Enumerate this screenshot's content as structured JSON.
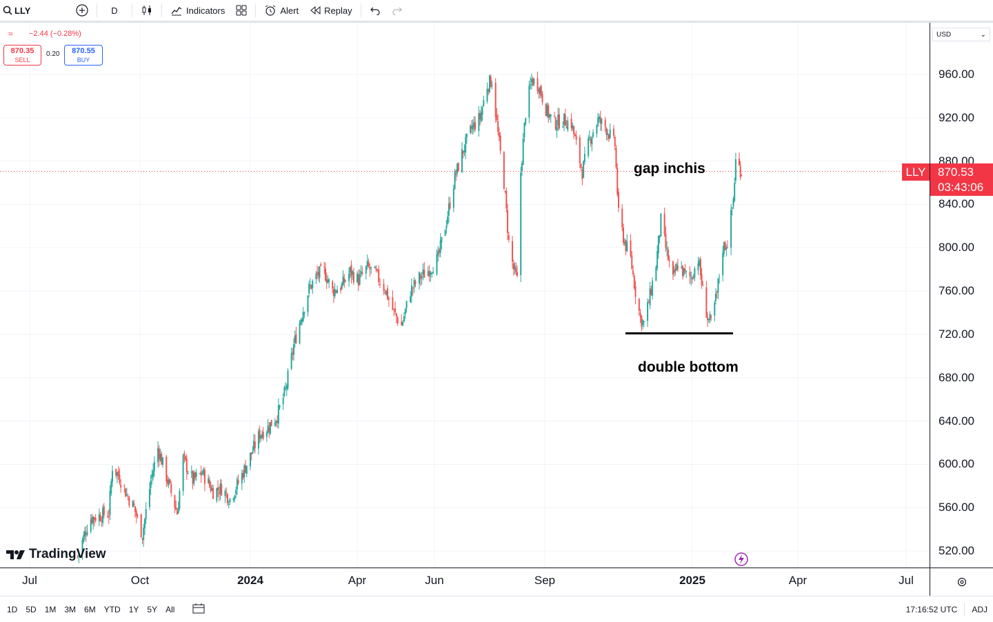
{
  "toolbar": {
    "symbol": "LLY",
    "interval": "D",
    "indicators": "Indicators",
    "alert": "Alert",
    "replay": "Replay"
  },
  "quote": {
    "change": "−2.44 (−0.28%)",
    "sell_price": "870.35",
    "sell_label": "SELL",
    "spread": "0.20",
    "buy_price": "870.55",
    "buy_label": "BUY"
  },
  "currency": "USD",
  "price_axis": [
    "960.00",
    "920.00",
    "880.00",
    "840.00",
    "800.00",
    "760.00",
    "720.00",
    "680.00",
    "640.00",
    "600.00",
    "560.00",
    "520.00"
  ],
  "time_axis": [
    "Jul",
    "Oct",
    "2024",
    "Apr",
    "Jun",
    "Sep",
    "2025",
    "Apr",
    "Jul"
  ],
  "last_price": {
    "ticker": "LLY",
    "price": "870.53",
    "countdown": "03:43:06"
  },
  "annotations": {
    "gap": "gap inchis",
    "double_bottom": "double bottom"
  },
  "logo": "TradingView",
  "bottombar": {
    "ranges": [
      "1D",
      "5D",
      "1M",
      "3M",
      "6M",
      "YTD",
      "1Y",
      "5Y",
      "All"
    ],
    "clock": "17:16:52 UTC",
    "adj": "ADJ"
  },
  "colors": {
    "up": "#26a69a",
    "down": "#ef5350",
    "accent": "#f23645",
    "buy": "#2962ff"
  },
  "chart_data": {
    "type": "candlestick",
    "symbol": "LLY",
    "yrange": [
      505,
      985
    ],
    "scale": "linear",
    "grid": true,
    "anchors": [
      {
        "date": "2023-08-10",
        "price": 515
      },
      {
        "date": "2023-08-20",
        "price": 550
      },
      {
        "date": "2023-09-05",
        "price": 555
      },
      {
        "date": "2023-09-08",
        "price": 598
      },
      {
        "date": "2023-09-14",
        "price": 588
      },
      {
        "date": "2023-09-20",
        "price": 572
      },
      {
        "date": "2023-09-26",
        "price": 560
      },
      {
        "date": "2023-10-03",
        "price": 535
      },
      {
        "date": "2023-10-10",
        "price": 585
      },
      {
        "date": "2023-10-16",
        "price": 615
      },
      {
        "date": "2023-10-24",
        "price": 585
      },
      {
        "date": "2023-11-01",
        "price": 555
      },
      {
        "date": "2023-11-06",
        "price": 605
      },
      {
        "date": "2023-11-14",
        "price": 585
      },
      {
        "date": "2023-11-22",
        "price": 592
      },
      {
        "date": "2023-12-01",
        "price": 575
      },
      {
        "date": "2023-12-08",
        "price": 578
      },
      {
        "date": "2023-12-15",
        "price": 568
      },
      {
        "date": "2023-12-22",
        "price": 583
      },
      {
        "date": "2024-01-02",
        "price": 610
      },
      {
        "date": "2024-01-09",
        "price": 628
      },
      {
        "date": "2024-01-16",
        "price": 634
      },
      {
        "date": "2024-01-24",
        "price": 645
      },
      {
        "date": "2024-01-31",
        "price": 668
      },
      {
        "date": "2024-02-07",
        "price": 710
      },
      {
        "date": "2024-02-13",
        "price": 735
      },
      {
        "date": "2024-02-20",
        "price": 762
      },
      {
        "date": "2024-02-27",
        "price": 775
      },
      {
        "date": "2024-03-04",
        "price": 778
      },
      {
        "date": "2024-03-11",
        "price": 760
      },
      {
        "date": "2024-03-19",
        "price": 765
      },
      {
        "date": "2024-03-26",
        "price": 778
      },
      {
        "date": "2024-04-02",
        "price": 770
      },
      {
        "date": "2024-04-09",
        "price": 782
      },
      {
        "date": "2024-04-16",
        "price": 775
      },
      {
        "date": "2024-04-23",
        "price": 762
      },
      {
        "date": "2024-04-30",
        "price": 740
      },
      {
        "date": "2024-05-06",
        "price": 728
      },
      {
        "date": "2024-05-13",
        "price": 760
      },
      {
        "date": "2024-05-20",
        "price": 772
      },
      {
        "date": "2024-05-28",
        "price": 780
      },
      {
        "date": "2024-06-04",
        "price": 790
      },
      {
        "date": "2024-06-11",
        "price": 825
      },
      {
        "date": "2024-06-18",
        "price": 865
      },
      {
        "date": "2024-06-25",
        "price": 890
      },
      {
        "date": "2024-07-02",
        "price": 910
      },
      {
        "date": "2024-07-09",
        "price": 920
      },
      {
        "date": "2024-07-15",
        "price": 950
      },
      {
        "date": "2024-07-19",
        "price": 955
      },
      {
        "date": "2024-07-24",
        "price": 905
      },
      {
        "date": "2024-07-29",
        "price": 860
      },
      {
        "date": "2024-08-02",
        "price": 805
      },
      {
        "date": "2024-08-06",
        "price": 780
      },
      {
        "date": "2024-08-09",
        "price": 770
      },
      {
        "date": "2024-08-12",
        "price": 870
      },
      {
        "date": "2024-08-16",
        "price": 925
      },
      {
        "date": "2024-08-21",
        "price": 955
      },
      {
        "date": "2024-08-27",
        "price": 950
      },
      {
        "date": "2024-09-03",
        "price": 925
      },
      {
        "date": "2024-09-09",
        "price": 915
      },
      {
        "date": "2024-09-16",
        "price": 918
      },
      {
        "date": "2024-09-23",
        "price": 915
      },
      {
        "date": "2024-09-27",
        "price": 895
      },
      {
        "date": "2024-10-02",
        "price": 870
      },
      {
        "date": "2024-10-08",
        "price": 900
      },
      {
        "date": "2024-10-15",
        "price": 918
      },
      {
        "date": "2024-10-22",
        "price": 910
      },
      {
        "date": "2024-10-29",
        "price": 895
      },
      {
        "date": "2024-11-01",
        "price": 830
      },
      {
        "date": "2024-11-06",
        "price": 805
      },
      {
        "date": "2024-11-11",
        "price": 790
      },
      {
        "date": "2024-11-15",
        "price": 760
      },
      {
        "date": "2024-11-19",
        "price": 735
      },
      {
        "date": "2024-11-22",
        "price": 730
      },
      {
        "date": "2024-11-26",
        "price": 750
      },
      {
        "date": "2024-12-02",
        "price": 785
      },
      {
        "date": "2024-12-06",
        "price": 825
      },
      {
        "date": "2024-12-10",
        "price": 800
      },
      {
        "date": "2024-12-16",
        "price": 770
      },
      {
        "date": "2024-12-20",
        "price": 785
      },
      {
        "date": "2024-12-26",
        "price": 775
      },
      {
        "date": "2024-12-31",
        "price": 772
      },
      {
        "date": "2025-01-06",
        "price": 790
      },
      {
        "date": "2025-01-10",
        "price": 760
      },
      {
        "date": "2025-01-14",
        "price": 735
      },
      {
        "date": "2025-01-17",
        "price": 730
      },
      {
        "date": "2025-01-22",
        "price": 758
      },
      {
        "date": "2025-01-27",
        "price": 800
      },
      {
        "date": "2025-01-31",
        "price": 805
      },
      {
        "date": "2025-02-05",
        "price": 845
      },
      {
        "date": "2025-02-07",
        "price": 880
      },
      {
        "date": "2025-02-12",
        "price": 870
      }
    ]
  }
}
